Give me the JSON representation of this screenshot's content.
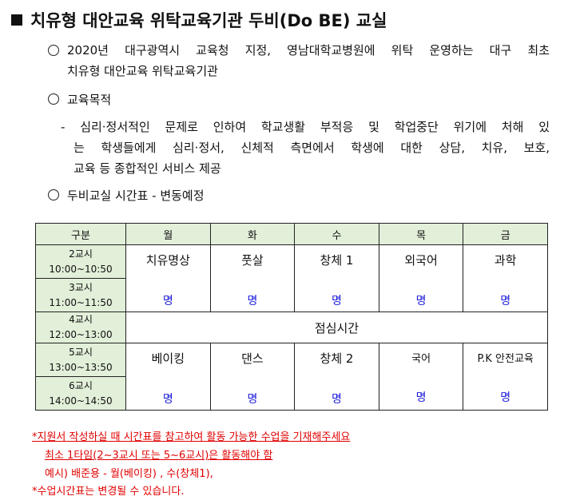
{
  "title": "치유형 대안교육 위탁교육기관 두비(Do BE) 교실",
  "bullets": {
    "intro_line1": "2020년 대구광역시 교육청 지정, 영남대학교병원에 위탁 운영하는 대구 최초",
    "intro_line2": "치유형 대안교육 위탁교육기관",
    "purpose_heading": "교육목적",
    "purpose_line1": "- 심리·정서적인 문제로 인하여 학교생활 부적응 및 학업중단 위기에 처해 있",
    "purpose_line2": "는 학생들에게 심리·정서, 신체적 측면에서 학생에 대한 상담, 치유, 보호,",
    "purpose_line3": "교육 등 종합적인 서비스 제공",
    "schedule_heading": "두비교실 시간표 - 변동예정"
  },
  "table": {
    "headers": [
      "구분",
      "월",
      "화",
      "수",
      "목",
      "금"
    ],
    "periods": [
      {
        "name": "2교시",
        "time": "10:00~10:50"
      },
      {
        "name": "3교시",
        "time": "11:00~11:50"
      },
      {
        "name": "4교시",
        "time": "12:00~13:00"
      },
      {
        "name": "5교시",
        "time": "13:00~13:50"
      },
      {
        "name": "6교시",
        "time": "14:00~14:50"
      }
    ],
    "morning": [
      "치유명상",
      "풋살",
      "창체 1",
      "외국어",
      "과학"
    ],
    "lunch": "점심시간",
    "afternoon": [
      "베이킹",
      "댄스",
      "창체 2",
      "국어",
      "P.K 안전교육"
    ],
    "count_label": "명",
    "header_bg": "#e2efd9",
    "count_color": "#1a1adb"
  },
  "notes": {
    "line1": "*지원서 작성하실 때 시간표를 참고하여 활동 가능한 수업을 기재해주세요",
    "line2": "최소 1타임(2~3교시 또는 5~6교시)은 활동해야 함",
    "line3": "예시) 배준용 - 월(베이킹) , 수(창체1),",
    "line4": "*수업시간표는 변경될 수 있습니다.",
    "color": "#e00000"
  }
}
